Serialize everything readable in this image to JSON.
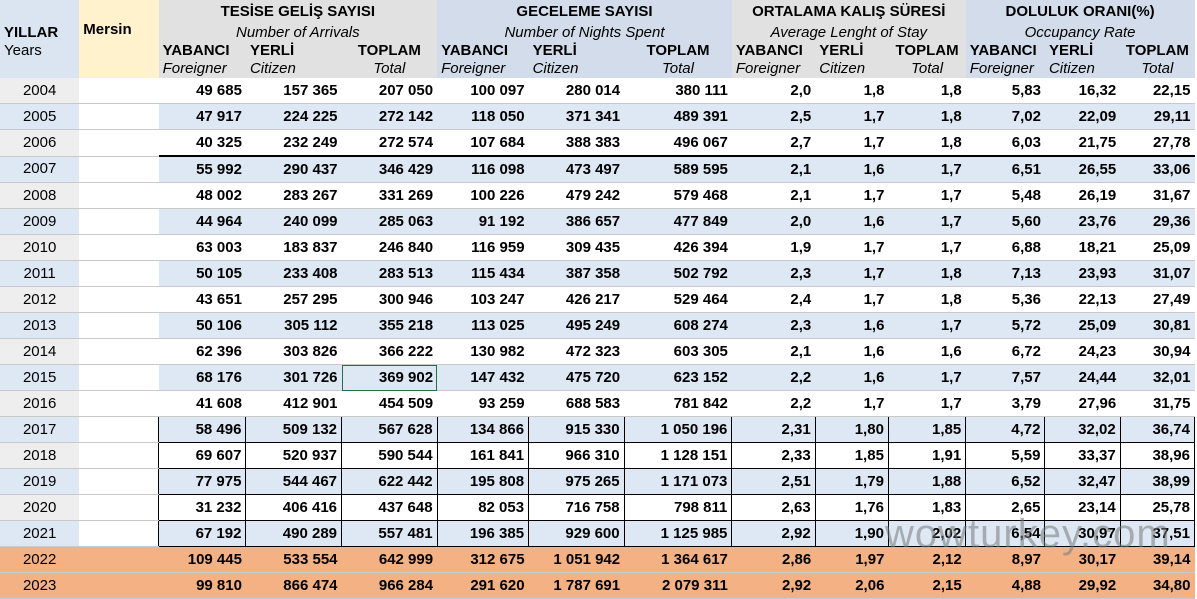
{
  "header": {
    "yillar": "YILLAR",
    "years": "Years",
    "mersin": "Mersin",
    "groups": [
      {
        "title": "TESİSE GELİŞ SAYISI",
        "subtitle": "Number of Arrivals"
      },
      {
        "title": "GECELEME SAYISI",
        "subtitle": "Number of Nights Spent"
      },
      {
        "title": "ORTALAMA KALIŞ SÜRESİ",
        "subtitle": "Average Lenght of Stay"
      },
      {
        "title": "DOLULUK ORANI(%)",
        "subtitle": "Occupancy Rate"
      }
    ],
    "columns": [
      {
        "label": "YABANCI",
        "sub": "Foreigner"
      },
      {
        "label": "YERLİ",
        "sub": "Citizen"
      },
      {
        "label": "TOPLAM",
        "sub": "Total"
      },
      {
        "label": "YABANCI",
        "sub": "Foreigner"
      },
      {
        "label": "YERLİ",
        "sub": "Citizen"
      },
      {
        "label": "TOPLAM",
        "sub": "Total"
      },
      {
        "label": "YABANCI",
        "sub": "Foreigner"
      },
      {
        "label": "YERLİ",
        "sub": "Citizen"
      },
      {
        "label": "TOPLAM",
        "sub": "Total"
      },
      {
        "label": "YABANCI",
        "sub": "Foreigner"
      },
      {
        "label": "YERLİ",
        "sub": "Citizen"
      },
      {
        "label": "TOPLAM",
        "sub": "Total"
      }
    ]
  },
  "rows": [
    {
      "year": "2004",
      "v": [
        "49 685",
        "157 365",
        "207 050",
        "100 097",
        "280 014",
        "380 111",
        "2,0",
        "1,8",
        "1,8",
        "5,83",
        "16,32",
        "22,15"
      ]
    },
    {
      "year": "2005",
      "v": [
        "47 917",
        "224 225",
        "272 142",
        "118 050",
        "371 341",
        "489 391",
        "2,5",
        "1,7",
        "1,8",
        "7,02",
        "22,09",
        "29,11"
      ]
    },
    {
      "year": "2006",
      "v": [
        "40 325",
        "232 249",
        "272 574",
        "107 684",
        "388 383",
        "496 067",
        "2,7",
        "1,7",
        "1,8",
        "6,03",
        "21,75",
        "27,78"
      ]
    },
    {
      "year": "2007",
      "v": [
        "55 992",
        "290 437",
        "346 429",
        "116 098",
        "473 497",
        "589 595",
        "2,1",
        "1,6",
        "1,7",
        "6,51",
        "26,55",
        "33,06"
      ]
    },
    {
      "year": "2008",
      "v": [
        "48 002",
        "283 267",
        "331 269",
        "100 226",
        "479 242",
        "579 468",
        "2,1",
        "1,7",
        "1,7",
        "5,48",
        "26,19",
        "31,67"
      ]
    },
    {
      "year": "2009",
      "v": [
        "44 964",
        "240 099",
        "285 063",
        "91 192",
        "386 657",
        "477 849",
        "2,0",
        "1,6",
        "1,7",
        "5,60",
        "23,76",
        "29,36"
      ]
    },
    {
      "year": "2010",
      "v": [
        "63 003",
        "183 837",
        "246 840",
        "116 959",
        "309 435",
        "426 394",
        "1,9",
        "1,7",
        "1,7",
        "6,88",
        "18,21",
        "25,09"
      ]
    },
    {
      "year": "2011",
      "v": [
        "50 105",
        "233 408",
        "283 513",
        "115 434",
        "387 358",
        "502 792",
        "2,3",
        "1,7",
        "1,8",
        "7,13",
        "23,93",
        "31,07"
      ]
    },
    {
      "year": "2012",
      "v": [
        "43 651",
        "257 295",
        "300 946",
        "103 247",
        "426 217",
        "529 464",
        "2,4",
        "1,7",
        "1,8",
        "5,36",
        "22,13",
        "27,49"
      ]
    },
    {
      "year": "2013",
      "v": [
        "50 106",
        "305 112",
        "355 218",
        "113 025",
        "495 249",
        "608 274",
        "2,3",
        "1,6",
        "1,7",
        "5,72",
        "25,09",
        "30,81"
      ]
    },
    {
      "year": "2014",
      "v": [
        "62 396",
        "303 826",
        "366 222",
        "130 982",
        "472 323",
        "603 305",
        "2,1",
        "1,6",
        "1,6",
        "6,72",
        "24,23",
        "30,94"
      ]
    },
    {
      "year": "2015",
      "v": [
        "68 176",
        "301 726",
        "369 902",
        "147 432",
        "475 720",
        "623 152",
        "2,2",
        "1,6",
        "1,7",
        "7,57",
        "24,44",
        "32,01"
      ]
    },
    {
      "year": "2016",
      "v": [
        "41 608",
        "412 901",
        "454 509",
        "93 259",
        "688 583",
        "781 842",
        "2,2",
        "1,7",
        "1,7",
        "3,79",
        "27,96",
        "31,75"
      ]
    },
    {
      "year": "2017",
      "v": [
        "58 496",
        "509 132",
        "567 628",
        "134 866",
        "915 330",
        "1 050 196",
        "2,31",
        "1,80",
        "1,85",
        "4,72",
        "32,02",
        "36,74"
      ]
    },
    {
      "year": "2018",
      "v": [
        "69 607",
        "520 937",
        "590 544",
        "161 841",
        "966 310",
        "1 128 151",
        "2,33",
        "1,85",
        "1,91",
        "5,59",
        "33,37",
        "38,96"
      ]
    },
    {
      "year": "2019",
      "v": [
        "77 975",
        "544 467",
        "622 442",
        "195 808",
        "975 265",
        "1 171 073",
        "2,51",
        "1,79",
        "1,88",
        "6,52",
        "32,47",
        "38,99"
      ]
    },
    {
      "year": "2020",
      "v": [
        "31 232",
        "406 416",
        "437 648",
        "82 053",
        "716 758",
        "798 811",
        "2,63",
        "1,76",
        "1,83",
        "2,65",
        "23,14",
        "25,78"
      ]
    },
    {
      "year": "2021",
      "v": [
        "67 192",
        "490 289",
        "557 481",
        "196 385",
        "929 600",
        "1 125 985",
        "2,92",
        "1,90",
        "2,02",
        "6,54",
        "30,97",
        "37,51"
      ]
    },
    {
      "year": "2022",
      "v": [
        "109 445",
        "533 554",
        "642 999",
        "312 675",
        "1 051 942",
        "1 364 617",
        "2,86",
        "1,97",
        "2,12",
        "8,97",
        "30,17",
        "39,14"
      ]
    },
    {
      "year": "2023",
      "v": [
        "99 810",
        "866 474",
        "966 284",
        "291 620",
        "1 787 691",
        "2 079 311",
        "2,92",
        "2,06",
        "2,15",
        "4,88",
        "29,92",
        "34,80"
      ]
    }
  ],
  "watermark": "wowturkey.com",
  "colors": {
    "highlight_rows": "#f4b183",
    "shade": "#dde8f4",
    "mersin_cell": "#fff2cc",
    "header_gray": "#e1e1e1"
  }
}
